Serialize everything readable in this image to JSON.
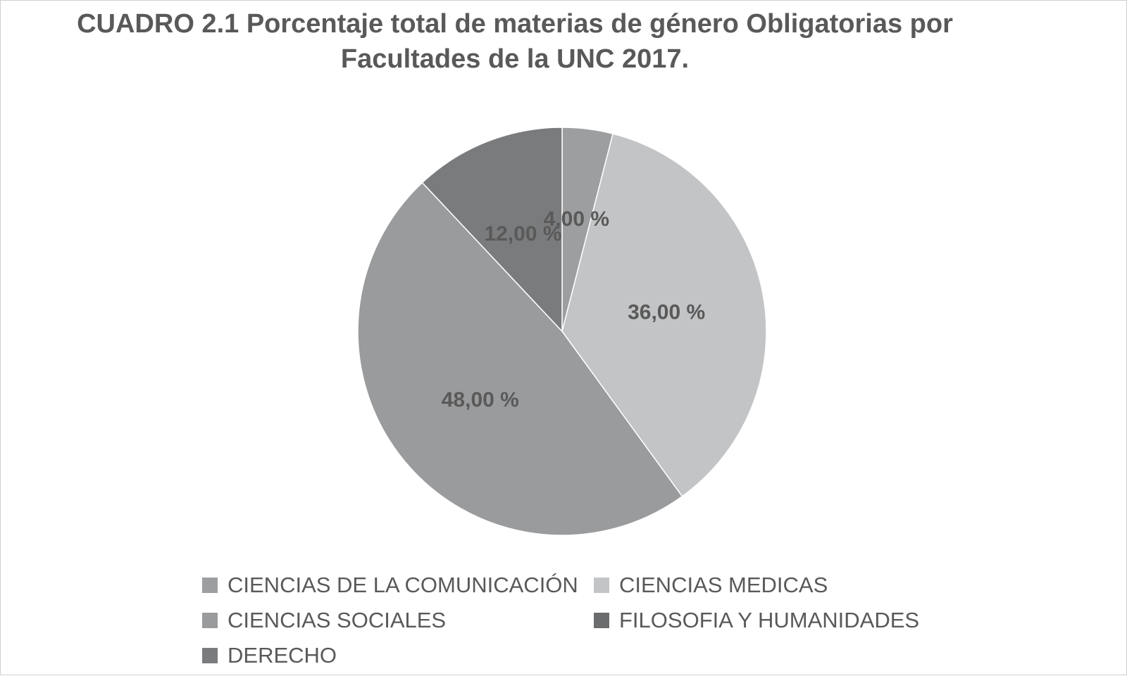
{
  "chart_data": {
    "type": "pie",
    "title_lines": [
      "CUADRO 2.1 Porcentaje total de  materias de género Obligatorias por",
      "Facultades de la UNC 2017."
    ],
    "slices": [
      {
        "label": "CIENCIAS DE LA COMUNICACIÓN",
        "value": 4,
        "display": "4,00 %",
        "color": "#9d9ea0"
      },
      {
        "label": "CIENCIAS MEDICAS",
        "value": 36,
        "display": "36,00 %",
        "color": "#c3c4c6"
      },
      {
        "label": "CIENCIAS SOCIALES",
        "value": 48,
        "display": "48,00 %",
        "color": "#9a9b9d"
      },
      {
        "label": "FILOSOFIA Y HUMANIDADES",
        "value": 0,
        "display": "",
        "color": "#6b6c6e"
      },
      {
        "label": "DERECHO",
        "value": 12,
        "display": "12,00 %",
        "color": "#7a7b7d"
      }
    ],
    "legend_position": "bottom",
    "label_color": "#595959"
  }
}
